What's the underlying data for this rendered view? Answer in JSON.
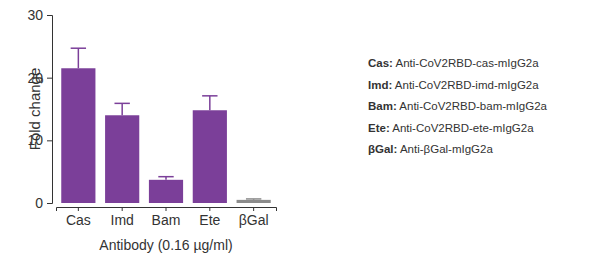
{
  "chart_data": {
    "type": "bar",
    "x_label": "Antibody (0.16 µg/ml)",
    "y_label": "Fold change",
    "categories": [
      "Cas",
      "Imd",
      "Bam",
      "Ete",
      "βGal"
    ],
    "values": [
      21.5,
      14,
      3.7,
      14.8,
      0.5
    ],
    "errors": [
      3.2,
      1.9,
      0.5,
      2.3,
      0.15
    ],
    "colors": [
      "#7b3f99",
      "#7b3f99",
      "#7b3f99",
      "#7b3f99",
      "#8c8c8c"
    ],
    "ylim": [
      0,
      30
    ],
    "yticks": [
      0,
      10,
      20,
      30
    ],
    "grid": false,
    "annotations": [
      "Cas: Anti-CoV2RBD-cas-mIgG2a",
      "Imd: Anti-CoV2RBD-imd-mIgG2a",
      "Bam: Anti-CoV2RBD-bam-mIgG2a",
      "Ete: Anti-CoV2RBD-ete-mIgG2a",
      "βGal: Anti-βGal-mIgG2a"
    ]
  }
}
